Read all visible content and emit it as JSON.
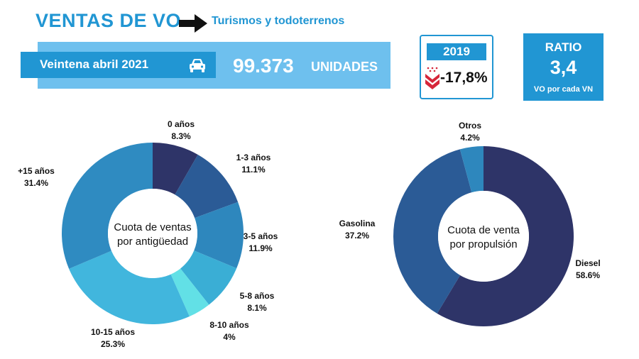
{
  "header": {
    "title": "VENTAS DE VO",
    "subtitle": "Turismos y todoterrenos",
    "arrow_icon": "right-arrow-icon"
  },
  "banner": {
    "period": "Veintena abril 2021",
    "car_icon": "car-icon",
    "units_value": "99.373",
    "units_label": "UNIDADES"
  },
  "comparison": {
    "year": "2019",
    "change": "-17,8%",
    "trend_icon": "down-chevrons-icon"
  },
  "ratio": {
    "title": "RATIO",
    "value": "3,4",
    "note": "VO por cada VN"
  },
  "chart_data": [
    {
      "type": "pie",
      "donut": true,
      "center_label": [
        "Cuota de ventas",
        "por antigüedad"
      ],
      "categories": [
        "0 años",
        "1-3 años",
        "3-5 años",
        "5-8 años",
        "8-10 años",
        "10-15 años",
        "+15 años"
      ],
      "labels": [
        "8.3%",
        "11.1%",
        "11.9%",
        "8.1%",
        "4%",
        "25.3%",
        "31.4%"
      ],
      "values": [
        8.3,
        11.1,
        11.9,
        8.1,
        4.0,
        25.3,
        31.4
      ],
      "colors": [
        "#2e3468",
        "#2b5b96",
        "#2e87bd",
        "#3aaed5",
        "#62e0e6",
        "#41b6dd",
        "#2f8bc1"
      ]
    },
    {
      "type": "pie",
      "donut": true,
      "center_label": [
        "Cuota de venta",
        "por propulsión"
      ],
      "categories": [
        "Diesel",
        "Gasolina",
        "Otros"
      ],
      "labels": [
        "58.6%",
        "37.2%",
        "4.2%"
      ],
      "values": [
        58.6,
        37.2,
        4.2
      ],
      "colors": [
        "#2e3468",
        "#2b5b96",
        "#2e87bd"
      ]
    }
  ]
}
